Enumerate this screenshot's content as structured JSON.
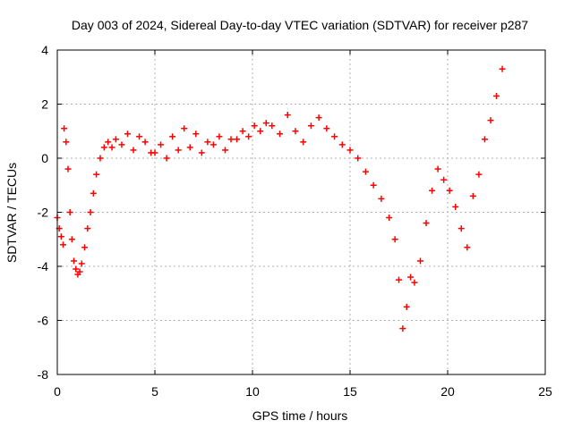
{
  "chart_data": {
    "type": "scatter",
    "title": "Day 003 of 2024, Sidereal Day-to-day VTEC variation (SDTVAR) for receiver p287",
    "xlabel": "GPS time / hours",
    "ylabel": "SDTVAR / TECUs",
    "xlim": [
      0,
      25
    ],
    "ylim": [
      -8,
      4
    ],
    "x_ticks": [
      0,
      5,
      10,
      15,
      20,
      25
    ],
    "x_tick_labels": [
      "0",
      "5",
      "10",
      "15",
      "20",
      "25"
    ],
    "y_ticks": [
      -8,
      -6,
      -4,
      -2,
      0,
      2,
      4
    ],
    "y_tick_labels": [
      "-8",
      "-6",
      "-4",
      "-2",
      "0",
      "2",
      "4"
    ],
    "grid": true,
    "marker": "+",
    "colors": {
      "series": "#ff0000",
      "grid": "#b0b0b0",
      "axis": "#000000"
    },
    "series": [
      {
        "name": "SDTVAR",
        "x": [
          0.0,
          0.1,
          0.2,
          0.3,
          0.35,
          0.45,
          0.55,
          0.65,
          0.75,
          0.85,
          0.95,
          1.05,
          1.15,
          1.25,
          1.4,
          1.55,
          1.7,
          1.85,
          2.0,
          2.2,
          2.4,
          2.6,
          2.8,
          3.0,
          3.3,
          3.6,
          3.9,
          4.2,
          4.5,
          4.8,
          5.0,
          5.3,
          5.6,
          5.9,
          6.2,
          6.5,
          6.8,
          7.1,
          7.4,
          7.7,
          8.0,
          8.3,
          8.6,
          8.9,
          9.2,
          9.5,
          9.8,
          10.1,
          10.4,
          10.7,
          11.0,
          11.4,
          11.8,
          12.2,
          12.6,
          13.0,
          13.4,
          13.8,
          14.2,
          14.6,
          15.0,
          15.4,
          15.8,
          16.2,
          16.6,
          17.0,
          17.3,
          17.5,
          17.7,
          17.9,
          18.1,
          18.3,
          18.6,
          18.9,
          19.2,
          19.5,
          19.8,
          20.1,
          20.4,
          20.7,
          21.0,
          21.3,
          21.6,
          21.9,
          22.2,
          22.5,
          22.8
        ],
        "y": [
          -2.2,
          -2.6,
          -2.9,
          -3.2,
          1.1,
          0.6,
          -0.4,
          -2.0,
          -3.0,
          -3.8,
          -4.1,
          -4.3,
          -4.2,
          -3.9,
          -3.3,
          -2.6,
          -2.0,
          -1.3,
          -0.6,
          0.0,
          0.4,
          0.6,
          0.4,
          0.7,
          0.5,
          0.9,
          0.3,
          0.8,
          0.6,
          0.2,
          0.2,
          0.5,
          0.0,
          0.8,
          0.3,
          1.1,
          0.4,
          0.9,
          0.2,
          0.6,
          0.5,
          0.8,
          0.3,
          0.7,
          0.7,
          1.0,
          0.8,
          1.2,
          1.0,
          1.3,
          1.2,
          0.9,
          1.6,
          1.0,
          0.6,
          1.2,
          1.5,
          1.1,
          0.8,
          0.5,
          0.3,
          0.0,
          -0.5,
          -1.0,
          -1.5,
          -2.2,
          -3.0,
          -4.5,
          -6.3,
          -5.5,
          -4.4,
          -4.6,
          -3.8,
          -2.4,
          -1.2,
          -0.4,
          -0.8,
          -1.2,
          -1.8,
          -2.6,
          -3.3,
          -1.4,
          -0.6,
          0.7,
          1.4,
          2.3,
          3.3
        ]
      }
    ]
  }
}
